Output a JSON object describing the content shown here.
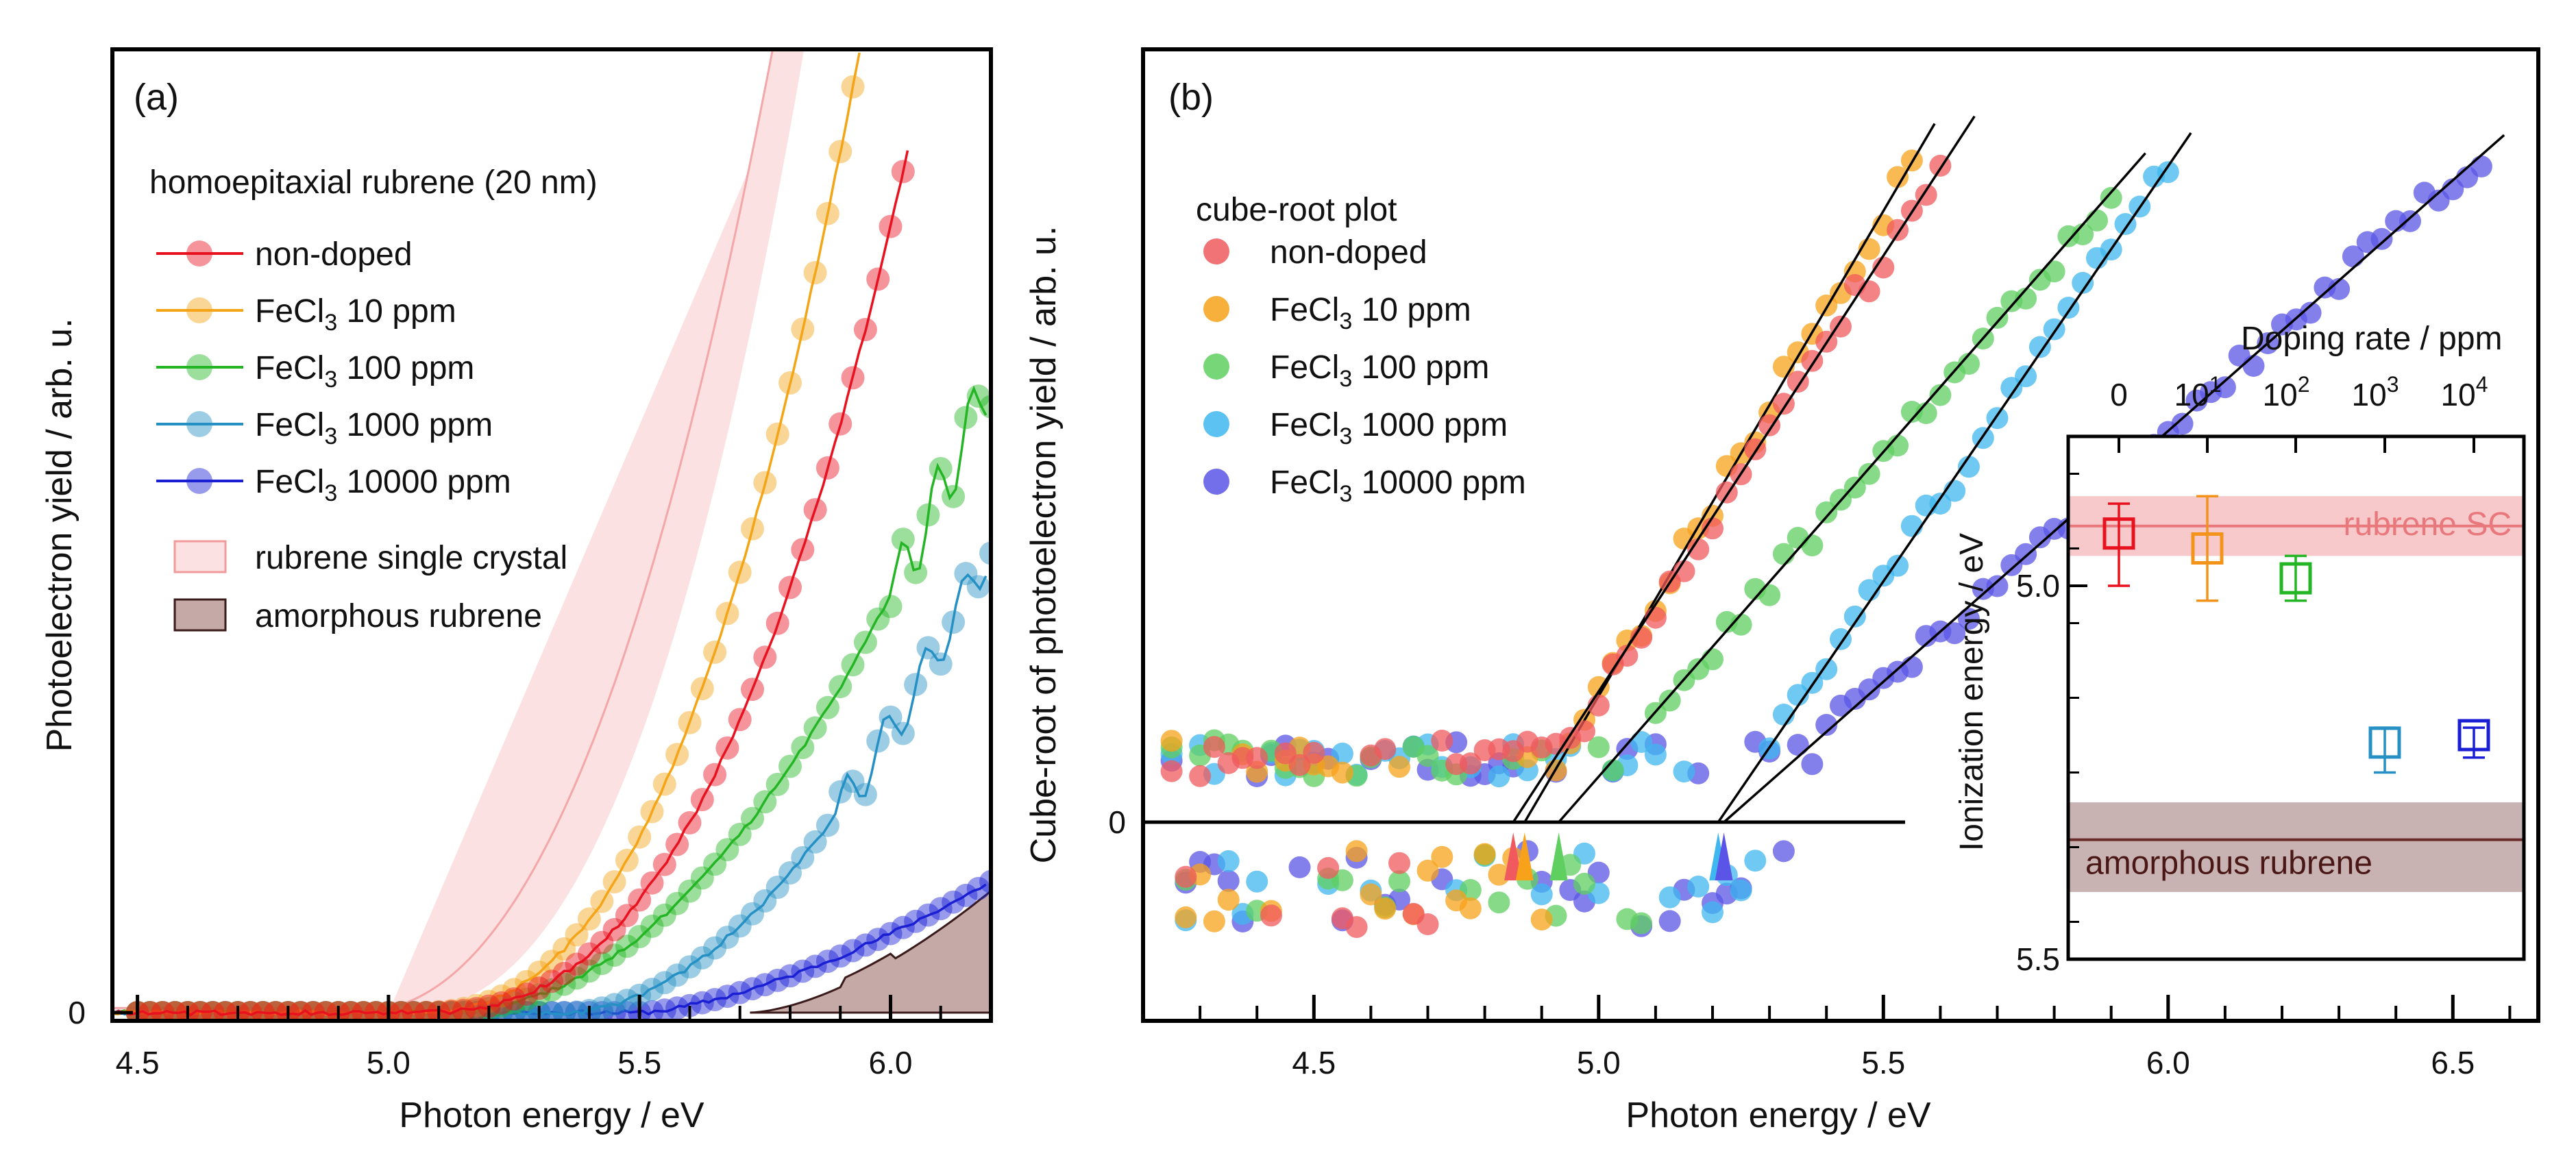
{
  "chart_data": [
    {
      "panel_label": "(a)",
      "type": "line",
      "title": "homoepitaxial rubrene (20 nm)",
      "xlabel": "Photon energy / eV",
      "ylabel": "Photoelectron yield / arb. u.",
      "xlim": [
        4.45,
        6.2
      ],
      "ylim": [
        0,
        10
      ],
      "x_ticks": [
        "4.5",
        "5.0",
        "5.5",
        "6.0"
      ],
      "y_tick": "0",
      "legend": [
        {
          "key": "nd",
          "pre": "non-doped",
          "sub": "",
          "post": ""
        },
        {
          "key": "d10",
          "pre": "FeCl",
          "sub": "3",
          "post": " 10 ppm"
        },
        {
          "key": "d100",
          "pre": "FeCl",
          "sub": "3",
          "post": " 100 ppm"
        },
        {
          "key": "d1000",
          "pre": "FeCl",
          "sub": "3",
          "post": " 1000 ppm"
        },
        {
          "key": "d10000",
          "pre": "FeCl",
          "sub": "3",
          "post": " 10000 ppm"
        }
      ],
      "band_legend": [
        "rubrene single crystal",
        "amorphous rubrene"
      ],
      "series": [
        {
          "key": "nd",
          "color": "#e8121f",
          "onset": 5.05,
          "x_end": 6.04,
          "values_desc": "y=8.4*((x-5.05)/(6.0-5.05))^2.6"
        },
        {
          "key": "d10",
          "color": "#f4a516",
          "onset": 5.05,
          "x_end": 5.94,
          "values_desc": "y=9.2*((x-5.05)/(5.9-5.05))^2.5"
        },
        {
          "key": "d100",
          "color": "#23b524",
          "onset": 5.1,
          "x_end": 6.2,
          "values_desc": "y=6.8*((x-5.1)/(6.2-5.1))^2.1"
        },
        {
          "key": "d1000",
          "color": "#2690c4",
          "onset": 5.35,
          "x_end": 6.2,
          "values_desc": "y=5.0*((x-5.35)/(6.2-5.35))^1.9"
        },
        {
          "key": "d10000",
          "color": "#1b1fd4",
          "onset": 5.5,
          "x_end": 6.2,
          "values_desc": "y=1.4*((x-5.5)/(6.2-5.5))^1.5"
        }
      ]
    },
    {
      "panel_label": "(b)",
      "type": "scatter",
      "title": "cube-root plot",
      "xlabel": "Photon energy / eV",
      "ylabel": "Cube-root of photoelectron yield / arb. u.",
      "xlim": [
        4.2,
        6.65
      ],
      "ylim": [
        -1.7,
        8.5
      ],
      "x_ticks": [
        "4.5",
        "5.0",
        "5.5",
        "6.0",
        "6.5"
      ],
      "y_tick": "0",
      "legend": [
        {
          "key": "nd",
          "pre": "non-doped",
          "sub": "",
          "post": ""
        },
        {
          "key": "d10",
          "pre": "FeCl",
          "sub": "3",
          "post": " 10 ppm"
        },
        {
          "key": "d100",
          "pre": "FeCl",
          "sub": "3",
          "post": " 100 ppm"
        },
        {
          "key": "d1000",
          "pre": "FeCl",
          "sub": "3",
          "post": " 1000 ppm"
        },
        {
          "key": "d10000",
          "pre": "FeCl",
          "sub": "3",
          "post": " 10000 ppm"
        }
      ],
      "threshold_eV": [
        4.85,
        4.87,
        4.93,
        5.21,
        5.22
      ],
      "series": [
        {
          "key": "nd",
          "color": "#f05a5e",
          "x_end": 5.62,
          "slope": 10.6
        },
        {
          "key": "d10",
          "color": "#f7a21a",
          "x_end": 5.55,
          "slope": 11.8
        },
        {
          "key": "d100",
          "color": "#5fcf60",
          "x_end": 5.92,
          "slope": 7.9
        },
        {
          "key": "d1000",
          "color": "#3fb7ef",
          "x_end": 6.0,
          "slope": 10.1
        },
        {
          "key": "d10000",
          "color": "#5a55e6",
          "x_end": 6.55,
          "slope": 6.1
        }
      ]
    },
    {
      "type": "scatter",
      "title": "inset",
      "xlabel": "Doping rate / ppm",
      "ylabel": "Ionization energy / eV",
      "ylim": [
        4.8,
        5.5
      ],
      "y_ticks": [
        "5.0",
        "5.5"
      ],
      "x_ticks": [
        {
          "base": "0",
          "exp": ""
        },
        {
          "base": "10",
          "exp": "1"
        },
        {
          "base": "10",
          "exp": "2"
        },
        {
          "base": "10",
          "exp": "3"
        },
        {
          "base": "10",
          "exp": "4"
        }
      ],
      "bands": [
        {
          "label": "rubrene SC",
          "center": 4.92,
          "low": 4.88,
          "high": 4.96,
          "color": "#f7c9ca",
          "line": "#e9787c"
        },
        {
          "label": "amorphous rubrene",
          "center": 5.34,
          "low": 5.29,
          "high": 5.41,
          "color": "#c9b2b2",
          "line": "#6a2b2b"
        }
      ],
      "points": [
        {
          "doping_ppm": "0",
          "ie": 4.93,
          "err_low": 0.04,
          "err_high": 0.07,
          "color": "#e8121f"
        },
        {
          "doping_ppm": "10",
          "ie": 4.95,
          "err_low": 0.07,
          "err_high": 0.07,
          "color": "#f4931a"
        },
        {
          "doping_ppm": "100",
          "ie": 4.99,
          "err_low": 0.03,
          "err_high": 0.03,
          "color": "#23b524"
        },
        {
          "doping_ppm": "1000",
          "ie": 5.21,
          "err_low": 0.02,
          "err_high": 0.04,
          "color": "#2690c4"
        },
        {
          "doping_ppm": "10000",
          "ie": 5.2,
          "err_low": 0.01,
          "err_high": 0.03,
          "color": "#1b1fd4"
        }
      ]
    }
  ]
}
